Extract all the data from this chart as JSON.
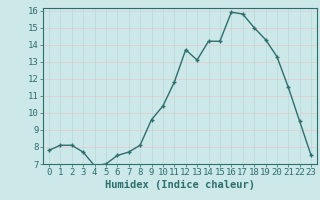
{
  "x": [
    0,
    1,
    2,
    3,
    4,
    5,
    6,
    7,
    8,
    9,
    10,
    11,
    12,
    13,
    14,
    15,
    16,
    17,
    18,
    19,
    20,
    21,
    22,
    23
  ],
  "y": [
    7.8,
    8.1,
    8.1,
    7.7,
    6.9,
    7.0,
    7.5,
    7.7,
    8.1,
    9.6,
    10.4,
    11.8,
    13.7,
    13.1,
    14.2,
    14.2,
    15.9,
    15.8,
    15.0,
    14.3,
    13.3,
    11.5,
    9.5,
    7.5
  ],
  "line_color": "#2d6e6e",
  "marker": "+",
  "bg_color": "#cce8e8",
  "grid_color": "#b8d8d8",
  "grid_color2": "#e8c8c8",
  "xlabel": "Humidex (Indice chaleur)",
  "ylim": [
    7,
    16
  ],
  "xlim": [
    -0.5,
    23.5
  ],
  "yticks": [
    7,
    8,
    9,
    10,
    11,
    12,
    13,
    14,
    15,
    16
  ],
  "xticks": [
    0,
    1,
    2,
    3,
    4,
    5,
    6,
    7,
    8,
    9,
    10,
    11,
    12,
    13,
    14,
    15,
    16,
    17,
    18,
    19,
    20,
    21,
    22,
    23
  ],
  "tick_color": "#2d6e6e",
  "label_color": "#2d6e6e",
  "font_size": 6.5,
  "xlabel_font_size": 7.5
}
